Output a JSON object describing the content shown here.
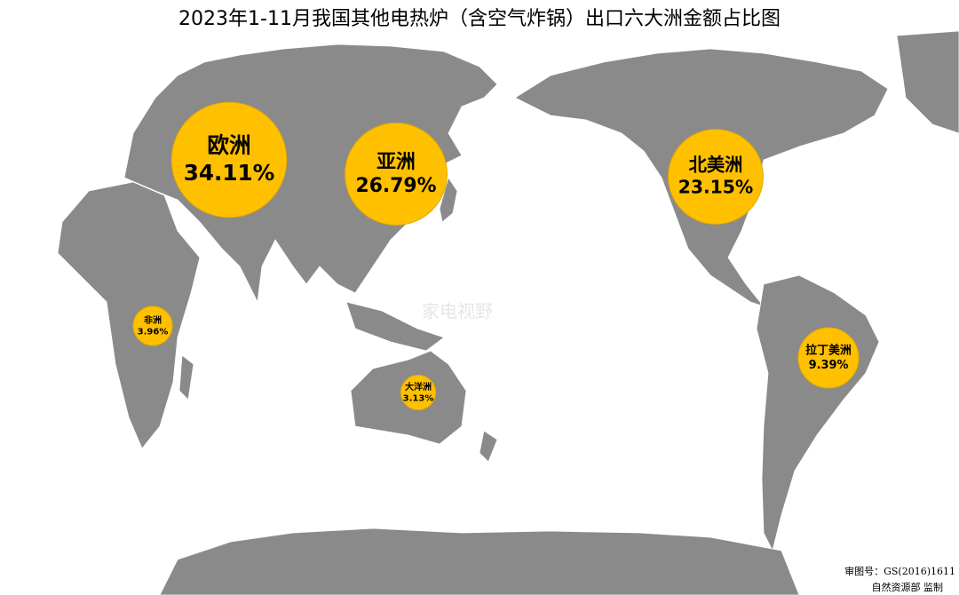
{
  "chart_data": {
    "type": "bubble-map",
    "title": "2023年1-11月我国其他电热炉（含空气炸锅）出口六大洲金额占比图",
    "categories": [
      "欧洲",
      "亚洲",
      "北美洲",
      "非洲",
      "大洋洲",
      "拉丁美洲"
    ],
    "values": [
      34.11,
      26.79,
      23.15,
      3.96,
      3.13,
      9.39
    ],
    "value_labels": [
      "34.11%",
      "26.79%",
      "23.15%",
      "3.96%",
      "3.13%",
      "9.39%"
    ],
    "color": "#FFC000"
  },
  "watermark": "家电视野",
  "credits": [
    "审图号：GS(2016)1611",
    "自然资源部 监制"
  ]
}
